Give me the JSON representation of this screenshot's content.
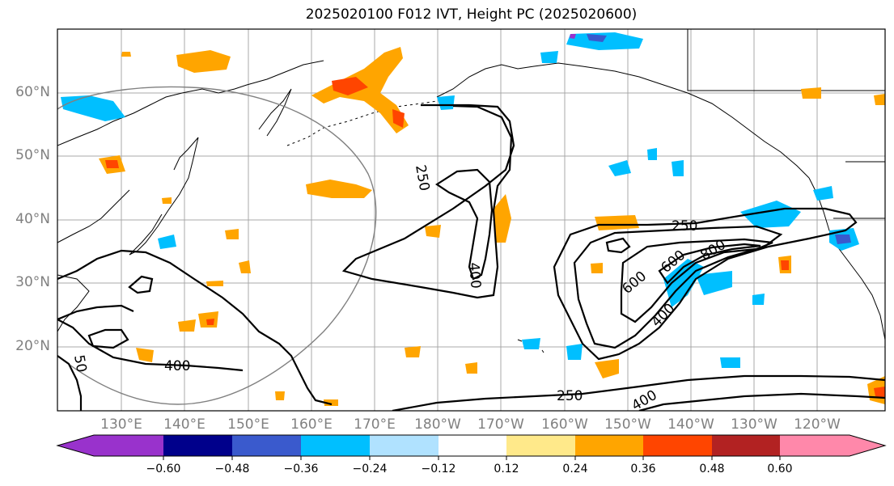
{
  "title": "2025020100 F012 IVT, Height PC (2025020600)",
  "lat_labels": [
    "60°N",
    "50°N",
    "40°N",
    "30°N",
    "20°N"
  ],
  "lon_labels": [
    "130°E",
    "140°E",
    "150°E",
    "160°E",
    "170°E",
    "180°W",
    "170°W",
    "160°W",
    "150°W",
    "140°W",
    "130°W",
    "120°W"
  ],
  "contour_labels": [
    "250",
    "400",
    "400",
    "250",
    "600",
    "600",
    "800",
    "400",
    "250",
    "400",
    "50"
  ],
  "colorbar": {
    "ticks": [
      "−0.60",
      "−0.48",
      "−0.36",
      "−0.24",
      "−0.12",
      "0.12",
      "0.24",
      "0.36",
      "0.48",
      "0.60"
    ],
    "colors": [
      "#9932CC",
      "#00008B",
      "#3A5ACD",
      "#00BFFF",
      "#B0E2FF",
      "#FFFFFF",
      "#FFE98A",
      "#FFA500",
      "#FF4500",
      "#B22222",
      "#FF88AA"
    ]
  }
}
